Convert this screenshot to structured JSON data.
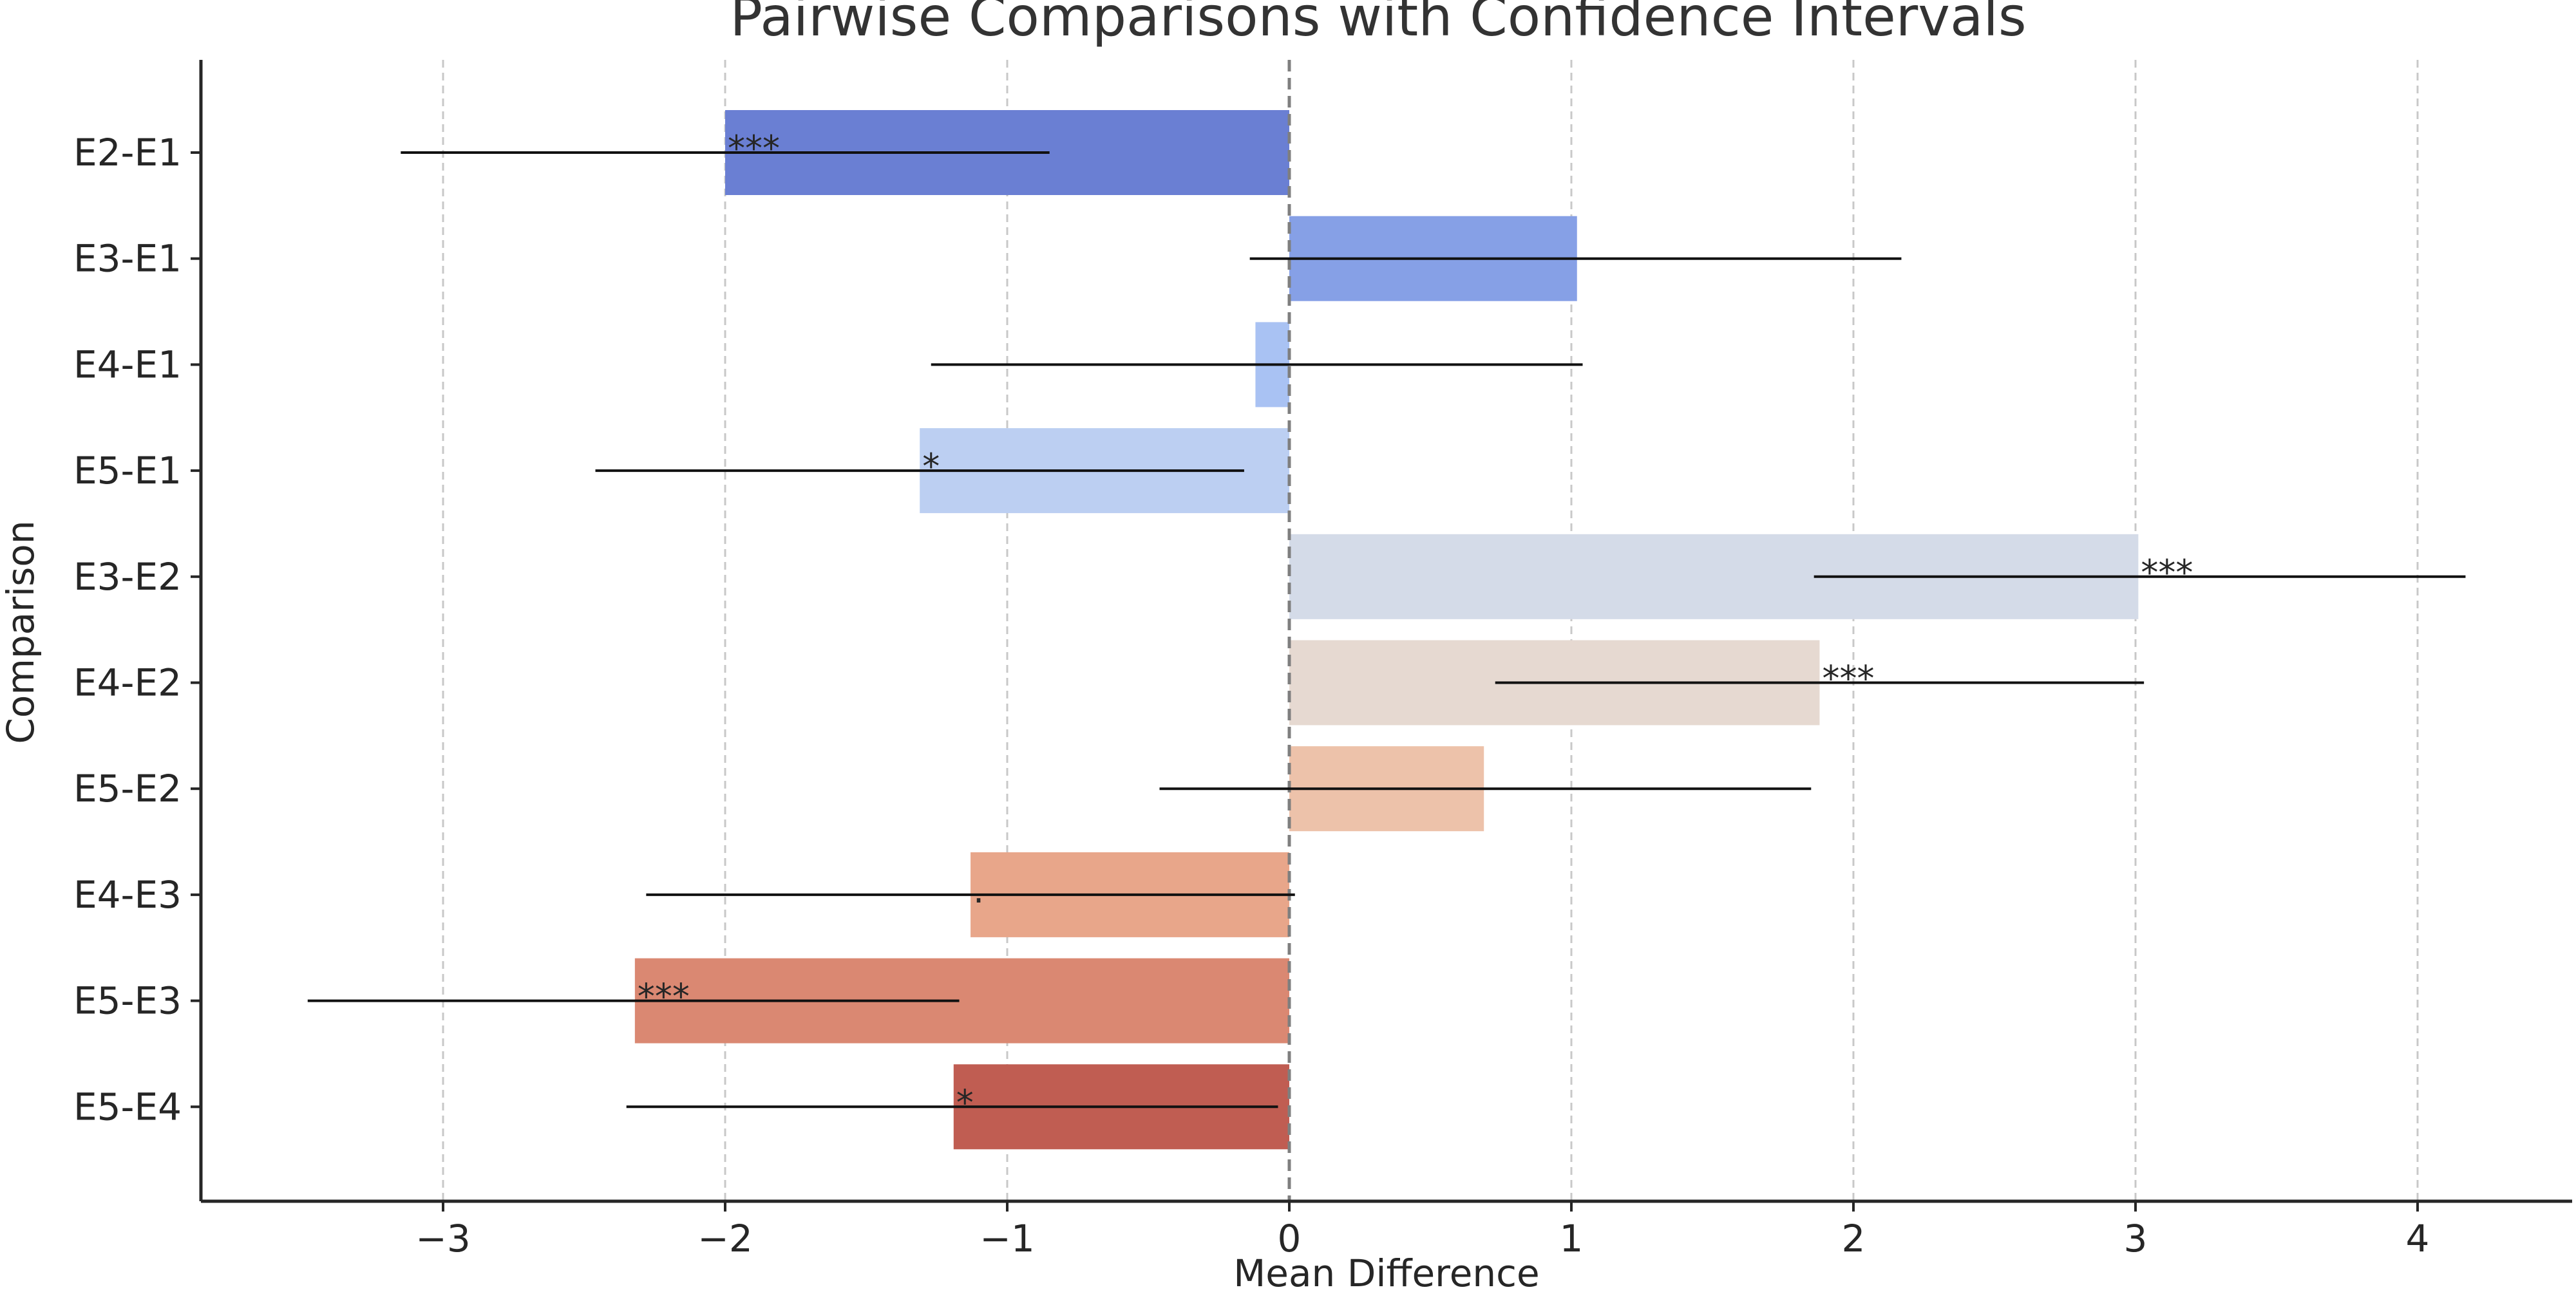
{
  "chart_data": {
    "type": "bar",
    "orientation": "horizontal",
    "title": "Pairwise Comparisons with Confidence Intervals",
    "xlabel": "Mean Difference",
    "ylabel": "Comparison",
    "xlim": [
      -3.85,
      4.55
    ],
    "xticks": [
      -3,
      -2,
      -1,
      0,
      1,
      2,
      3,
      4
    ],
    "xtick_labels": [
      "−3",
      "−2",
      "−1",
      "0",
      "1",
      "2",
      "3",
      "4"
    ],
    "grid": "vertical dashed",
    "reference_line": 0,
    "categories": [
      "E2-E1",
      "E3-E1",
      "E4-E1",
      "E5-E1",
      "E3-E2",
      "E4-E2",
      "E5-E2",
      "E4-E3",
      "E5-E3",
      "E5-E4"
    ],
    "values": [
      -2.0,
      1.02,
      -0.12,
      -1.31,
      3.01,
      1.88,
      0.69,
      -1.13,
      -2.32,
      -1.19
    ],
    "ci_lower": [
      -3.15,
      -0.14,
      -1.27,
      -2.46,
      1.86,
      0.73,
      -0.46,
      -2.28,
      -3.48,
      -2.35
    ],
    "ci_upper": [
      -0.85,
      2.17,
      1.04,
      -0.16,
      4.17,
      3.03,
      1.85,
      0.02,
      -1.17,
      -0.04
    ],
    "significance": [
      "***",
      "",
      "",
      "*",
      "***",
      "***",
      "",
      ".",
      "***",
      "*"
    ],
    "colors": [
      "#6a7fd3",
      "#86a0e6",
      "#a9c2f3",
      "#bccff2",
      "#d4dbe8",
      "#e6d9d1",
      "#edc2aa",
      "#e8a68a",
      "#da8872",
      "#c05d52"
    ]
  }
}
